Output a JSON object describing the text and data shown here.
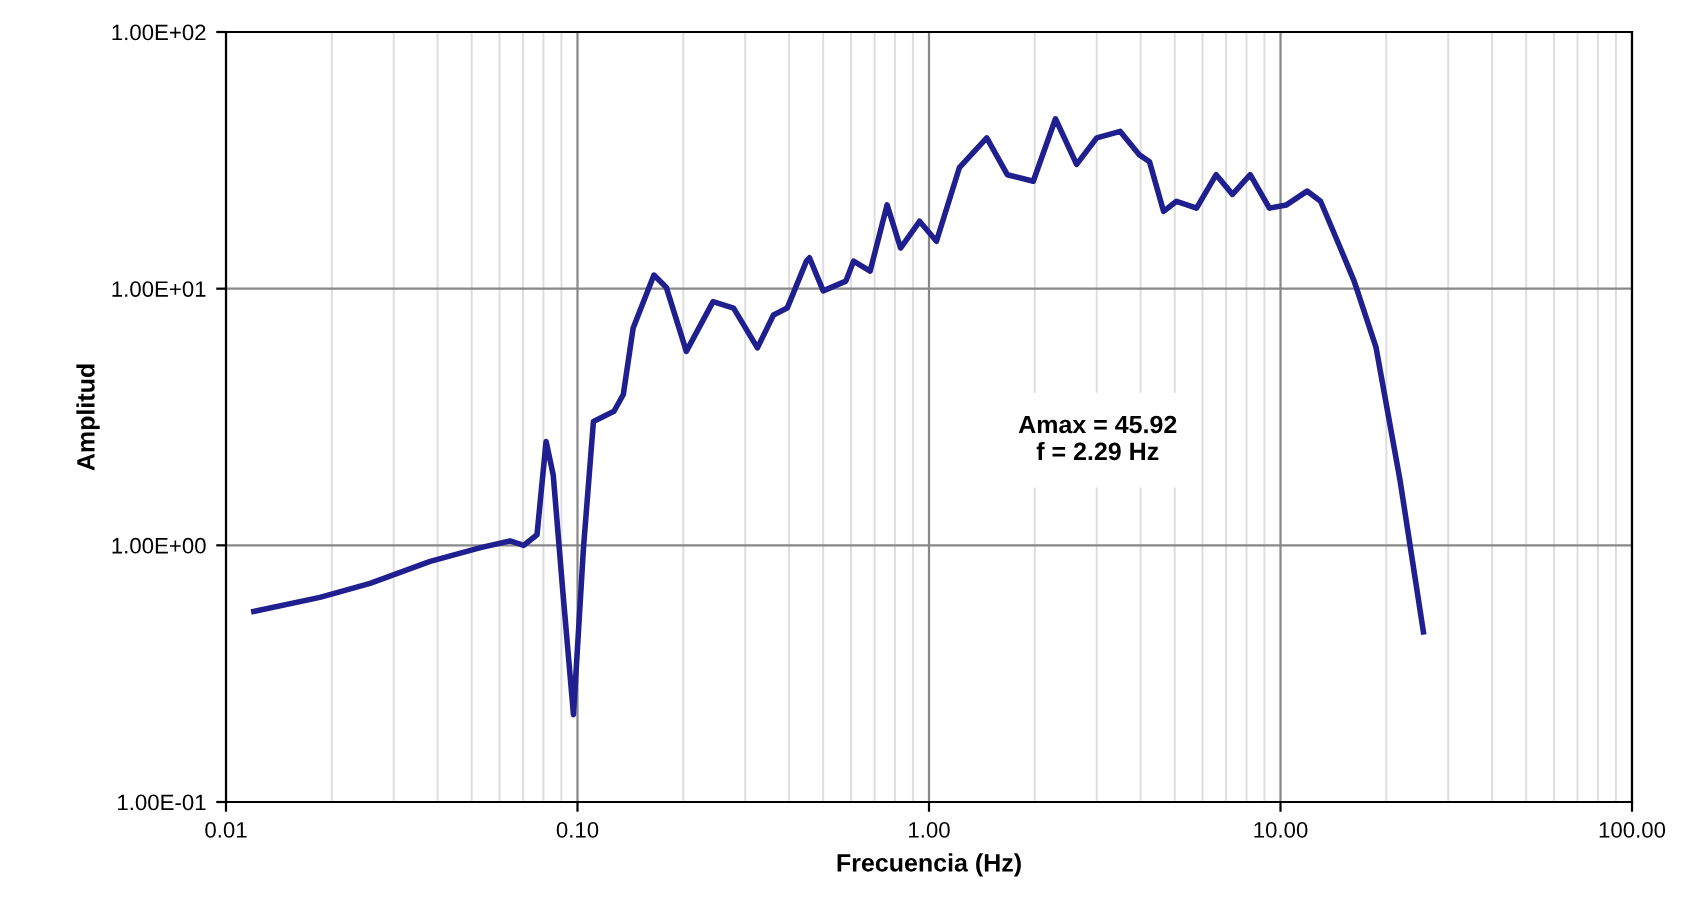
{
  "chart_data": {
    "type": "line",
    "xlabel": "Frecuencia (Hz)",
    "ylabel": "Amplitud",
    "log": "xy",
    "grid": true,
    "legend": false,
    "marker": "none",
    "line_style": "solid",
    "xlim": [
      0.01,
      100
    ],
    "ylim": [
      0.1,
      100
    ],
    "xticks": [
      {
        "value": 0.01,
        "label": "0.01"
      },
      {
        "value": 0.1,
        "label": "0.10"
      },
      {
        "value": 1,
        "label": "1.00"
      },
      {
        "value": 10,
        "label": "10.00"
      },
      {
        "value": 100,
        "label": "100.00"
      }
    ],
    "yticks": [
      {
        "value": 0.1,
        "label": "1.00E-01"
      },
      {
        "value": 1,
        "label": "1.00E+00"
      },
      {
        "value": 10,
        "label": "1.00E+01"
      },
      {
        "value": 100,
        "label": "1.00E+02"
      }
    ],
    "annotations": [
      "Amax = 45.92\nf = 2.29 Hz"
    ],
    "series": [
      {
        "color": "#1f1f8f",
        "x": [
          0.012,
          0.0185,
          0.0257,
          0.0381,
          0.053,
          0.0643,
          0.0703,
          0.0767,
          0.0814,
          0.0853,
          0.091,
          0.0974,
          0.104,
          0.111,
          0.127,
          0.135,
          0.144,
          0.165,
          0.179,
          0.204,
          0.243,
          0.278,
          0.325,
          0.361,
          0.395,
          0.448,
          0.457,
          0.5,
          0.58,
          0.61,
          0.68,
          0.76,
          0.83,
          0.94,
          1.05,
          1.22,
          1.46,
          1.67,
          1.98,
          2.29,
          2.63,
          3.0,
          3.5,
          3.97,
          4.24,
          4.65,
          5.06,
          5.77,
          6.56,
          7.3,
          8.2,
          9.3,
          10.4,
          11.9,
          13.0,
          14.8,
          16.2,
          18.7,
          21.9,
          25.5
        ],
        "values": [
          0.553,
          0.627,
          0.711,
          0.866,
          0.98,
          1.04,
          1.0,
          1.1,
          2.54,
          1.88,
          0.642,
          0.219,
          0.98,
          3.04,
          3.33,
          3.87,
          7.03,
          11.3,
          10.1,
          5.7,
          8.9,
          8.4,
          5.88,
          7.9,
          8.4,
          12.8,
          13.2,
          9.8,
          10.7,
          12.8,
          11.7,
          21.2,
          14.4,
          18.3,
          15.3,
          29.6,
          38.7,
          27.8,
          26.2,
          45.92,
          30.5,
          38.7,
          41,
          33.2,
          31.2,
          20.0,
          21.9,
          20.6,
          27.8,
          23.3,
          27.8,
          20.6,
          21.2,
          24.0,
          21.9,
          14.4,
          10.7,
          5.9,
          1.78,
          0.46
        ]
      }
    ]
  }
}
